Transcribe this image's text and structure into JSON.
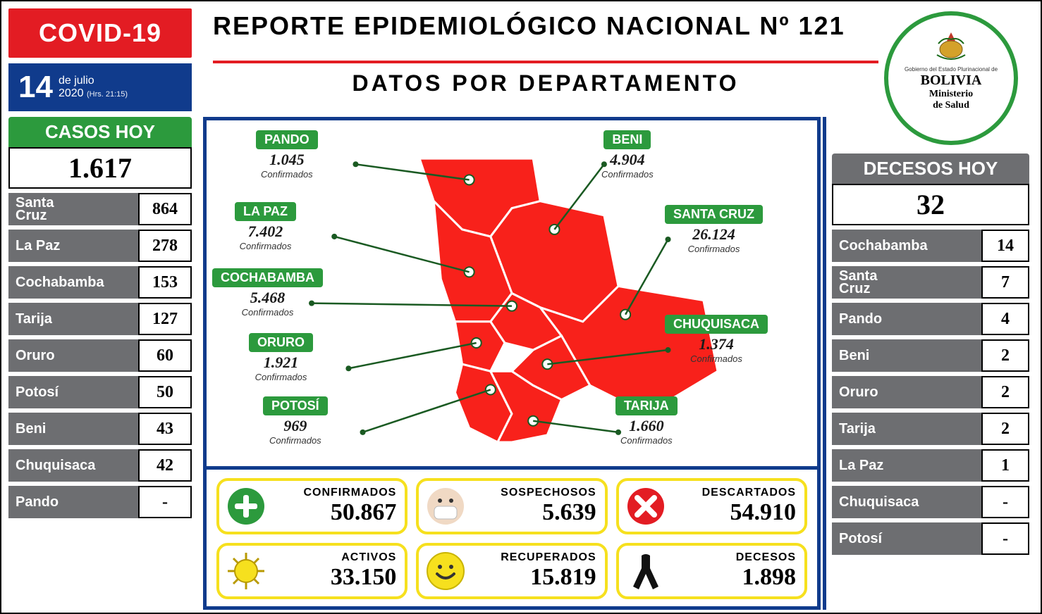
{
  "badge": "COVID-19",
  "title": "REPORTE  EPIDEMIOLÓGICO NACIONAL  Nº 121",
  "subtitle": "DATOS   POR   DEPARTAMENTO",
  "date": {
    "day": "14",
    "line1": "de julio",
    "line2": "2020",
    "time": "(Hrs. 21:15)"
  },
  "seal": {
    "t1": "Gobierno del Estado Plurinacional de",
    "t2": "BOLIVIA",
    "t3a": "Ministerio",
    "t3b": "de Salud"
  },
  "colors": {
    "red": "#e31c23",
    "blue": "#103b8c",
    "green": "#2c9a3d",
    "gray": "#6d6e71",
    "yellow": "#f6e01e",
    "mapred": "#f8211b"
  },
  "casos": {
    "title": "CASOS HOY",
    "total": "1.617",
    "rows": [
      {
        "label": "Santa\nCruz",
        "value": "864"
      },
      {
        "label": "La Paz",
        "value": "278"
      },
      {
        "label": "Cochabamba",
        "value": "153"
      },
      {
        "label": "Tarija",
        "value": "127"
      },
      {
        "label": "Oruro",
        "value": "60"
      },
      {
        "label": "Potosí",
        "value": "50"
      },
      {
        "label": "Beni",
        "value": "43"
      },
      {
        "label": "Chuquisaca",
        "value": "42"
      },
      {
        "label": "Pando",
        "value": "-"
      }
    ]
  },
  "decesos": {
    "title": "DECESOS HOY",
    "total": "32",
    "rows": [
      {
        "label": "Cochabamba",
        "value": "14"
      },
      {
        "label": "Santa\nCruz",
        "value": "7"
      },
      {
        "label": "Pando",
        "value": "4"
      },
      {
        "label": "Beni",
        "value": "2"
      },
      {
        "label": "Oruro",
        "value": "2"
      },
      {
        "label": "Tarija",
        "value": "2"
      },
      {
        "label": "La Paz",
        "value": "1"
      },
      {
        "label": "Chuquisaca",
        "value": "-"
      },
      {
        "label": "Potosí",
        "value": "-"
      }
    ]
  },
  "confirmados_label": "Confirmados",
  "map": [
    {
      "name": "PANDO",
      "value": "1.045",
      "pin": [
        370,
        70
      ],
      "tag": [
        70,
        14
      ],
      "side": "L"
    },
    {
      "name": "LA PAZ",
      "value": "7.402",
      "pin": [
        370,
        200
      ],
      "tag": [
        40,
        116
      ],
      "side": "L"
    },
    {
      "name": "COCHABAMBA",
      "value": "5.468",
      "pin": [
        430,
        248
      ],
      "tag": [
        8,
        210
      ],
      "side": "L"
    },
    {
      "name": "ORURO",
      "value": "1.921",
      "pin": [
        380,
        300
      ],
      "tag": [
        60,
        302
      ],
      "side": "L"
    },
    {
      "name": "POTOSÍ",
      "value": "969",
      "pin": [
        400,
        366
      ],
      "tag": [
        80,
        392
      ],
      "side": "L"
    },
    {
      "name": "BENI",
      "value": "4.904",
      "pin": [
        490,
        140
      ],
      "tag": [
        560,
        14
      ],
      "side": "R"
    },
    {
      "name": "SANTA CRUZ",
      "value": "26.124",
      "pin": [
        590,
        260
      ],
      "tag": [
        650,
        120
      ],
      "side": "R"
    },
    {
      "name": "CHUQUISACA",
      "value": "1.374",
      "pin": [
        480,
        330
      ],
      "tag": [
        650,
        276
      ],
      "side": "R"
    },
    {
      "name": "TARIJA",
      "value": "1.660",
      "pin": [
        460,
        410
      ],
      "tag": [
        580,
        392
      ],
      "side": "R"
    }
  ],
  "stats": [
    {
      "label": "CONFIRMADOS",
      "value": "50.867",
      "icon": "plus"
    },
    {
      "label": "SOSPECHOSOS",
      "value": "5.639",
      "icon": "mask"
    },
    {
      "label": "DESCARTADOS",
      "value": "54.910",
      "icon": "x"
    },
    {
      "label": "ACTIVOS",
      "value": "33.150",
      "icon": "virus"
    },
    {
      "label": "RECUPERADOS",
      "value": "15.819",
      "icon": "smile"
    },
    {
      "label": "DECESOS",
      "value": "1.898",
      "icon": "ribbon"
    }
  ]
}
